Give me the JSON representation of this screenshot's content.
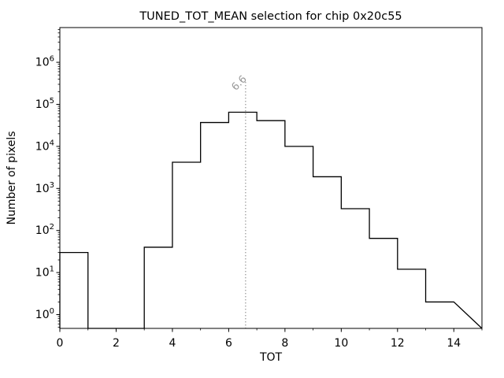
{
  "chart_data": {
    "type": "bar",
    "subtype": "step-histogram",
    "title": "TUNED_TOT_MEAN selection for chip 0x20c55",
    "xlabel": "TOT",
    "ylabel": "Number of pixels",
    "yscale": "log",
    "xlim": [
      0,
      15
    ],
    "ylim": [
      0.47,
      6700000
    ],
    "bin_edges": [
      0,
      1,
      2,
      3,
      4,
      5,
      6,
      7,
      8,
      9,
      10,
      11,
      12,
      13,
      14
    ],
    "counts": [
      30,
      0,
      0,
      40,
      4200,
      37000,
      65000,
      41000,
      10000,
      1900,
      330,
      65,
      12,
      2
    ],
    "x_major_ticks": [
      0,
      2,
      4,
      6,
      8,
      10,
      12,
      14
    ],
    "x_minor_ticks": [
      1,
      3,
      5,
      7,
      9,
      11,
      13,
      15
    ],
    "y_major_tick_exponents": [
      0,
      1,
      2,
      3,
      4,
      5,
      6
    ],
    "y_tick_label_base": "10",
    "grid": false,
    "legend": null,
    "annotation": {
      "vline_x": 6.6,
      "label": "6.6",
      "label_rotation_deg": -45,
      "line_style": "dotted",
      "color": "#999999"
    },
    "colors": {
      "step_line": "#000000",
      "spine": "#000000",
      "tick": "#000000",
      "text": "#000000",
      "background": "#ffffff",
      "annotation_gray": "#999999"
    }
  }
}
